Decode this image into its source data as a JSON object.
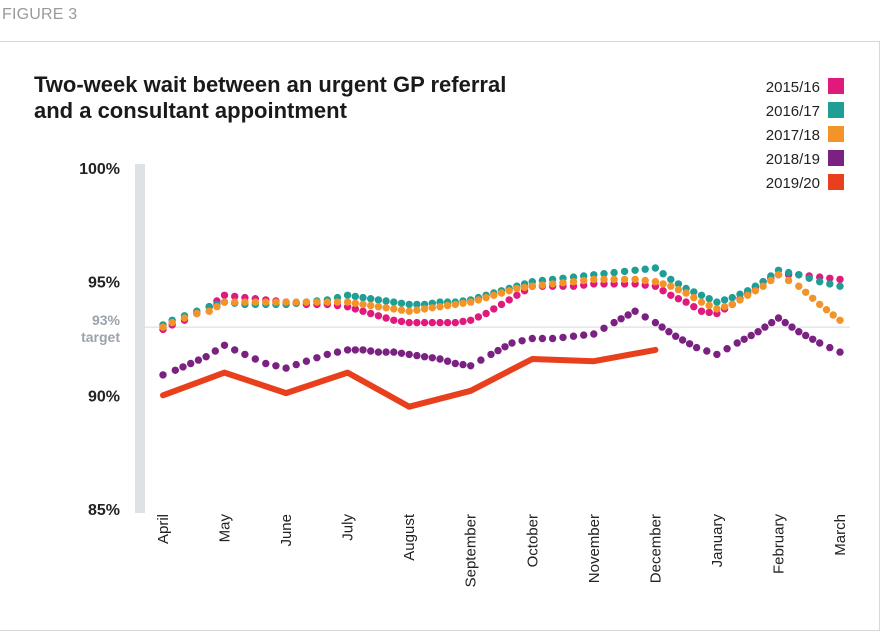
{
  "figure_label": "FIGURE 3",
  "chart_data": {
    "type": "line",
    "title_lines": [
      "Two-week wait between an urgent GP referral",
      "and a consultant appointment"
    ],
    "categories": [
      "April",
      "May",
      "June",
      "July",
      "August",
      "September",
      "October",
      "November",
      "December",
      "January",
      "February",
      "March"
    ],
    "y_ticks": [
      "100%",
      "95%",
      "90%",
      "85%"
    ],
    "ylim": [
      85,
      100
    ],
    "target": {
      "value": 93,
      "label_value": "93%",
      "label_text": "target"
    },
    "legend_position": "top-right",
    "series": [
      {
        "name": "2015/16",
        "color": "#e0197d",
        "style": "dotted",
        "x": [
          0,
          0.15,
          0.35,
          0.55,
          0.75,
          1,
          1.33,
          1.67,
          2,
          2.33,
          2.67,
          3,
          3.25,
          3.5,
          3.75,
          4,
          4.25,
          4.5,
          4.75,
          5,
          5.25,
          5.5,
          5.75,
          6,
          6.33,
          6.67,
          7,
          7.33,
          7.67,
          8,
          8.25,
          8.5,
          8.75,
          9,
          9.25,
          9.5,
          9.75,
          10,
          10.33,
          10.67,
          11
        ],
        "values": [
          92.9,
          93.1,
          93.3,
          93.6,
          93.9,
          94.4,
          94.3,
          94.2,
          94.1,
          94.0,
          94.0,
          93.9,
          93.7,
          93.5,
          93.3,
          93.2,
          93.2,
          93.2,
          93.2,
          93.3,
          93.6,
          94.0,
          94.4,
          94.8,
          94.8,
          94.8,
          94.9,
          94.9,
          94.9,
          94.8,
          94.4,
          94.1,
          93.7,
          93.6,
          94.0,
          94.5,
          95.0,
          95.3,
          95.3,
          95.2,
          95.1
        ]
      },
      {
        "name": "2016/17",
        "color": "#1e9e95",
        "style": "dotted",
        "x": [
          0,
          0.15,
          0.35,
          0.55,
          0.75,
          1,
          1.33,
          1.67,
          2,
          2.33,
          2.67,
          3,
          3.25,
          3.5,
          3.75,
          4,
          4.25,
          4.5,
          4.75,
          5,
          5.25,
          5.5,
          5.75,
          6,
          6.33,
          6.67,
          7,
          7.33,
          7.67,
          8,
          8.25,
          8.5,
          8.75,
          9,
          9.25,
          9.5,
          9.75,
          10,
          10.33,
          10.67,
          11
        ],
        "values": [
          93.1,
          93.3,
          93.5,
          93.7,
          93.9,
          94.1,
          94.0,
          94.0,
          94.0,
          94.1,
          94.2,
          94.4,
          94.3,
          94.2,
          94.1,
          94.0,
          94.0,
          94.1,
          94.1,
          94.2,
          94.4,
          94.6,
          94.8,
          95.0,
          95.1,
          95.2,
          95.3,
          95.4,
          95.5,
          95.6,
          95.1,
          94.7,
          94.4,
          94.1,
          94.3,
          94.6,
          95.0,
          95.5,
          95.3,
          95.0,
          94.8
        ]
      },
      {
        "name": "2017/18",
        "color": "#f39428",
        "style": "dotted",
        "x": [
          0,
          0.15,
          0.35,
          0.55,
          0.75,
          1,
          1.33,
          1.67,
          2,
          2.33,
          2.67,
          3,
          3.25,
          3.5,
          3.75,
          4,
          4.25,
          4.5,
          4.75,
          5,
          5.25,
          5.5,
          5.75,
          6,
          6.33,
          6.67,
          7,
          7.33,
          7.67,
          8,
          8.25,
          8.5,
          8.75,
          9,
          9.25,
          9.5,
          9.75,
          10,
          10.33,
          10.67,
          11
        ],
        "values": [
          93.0,
          93.2,
          93.4,
          93.6,
          93.7,
          94.1,
          94.1,
          94.1,
          94.1,
          94.1,
          94.1,
          94.1,
          94.0,
          93.9,
          93.8,
          93.7,
          93.8,
          93.9,
          94.0,
          94.1,
          94.3,
          94.5,
          94.7,
          94.8,
          94.9,
          95.0,
          95.1,
          95.1,
          95.1,
          95.0,
          94.8,
          94.5,
          94.1,
          93.8,
          94.0,
          94.4,
          94.8,
          95.3,
          94.8,
          94.0,
          93.3
        ]
      },
      {
        "name": "2018/19",
        "color": "#7b2181",
        "style": "dotted",
        "x": [
          0,
          0.2,
          0.45,
          0.7,
          1,
          1.33,
          1.67,
          2,
          2.33,
          2.67,
          3,
          3.25,
          3.5,
          3.75,
          4,
          4.25,
          4.5,
          4.75,
          5,
          5.33,
          5.67,
          6,
          6.33,
          6.67,
          7,
          7.33,
          7.67,
          8,
          8.33,
          8.67,
          9,
          9.33,
          9.67,
          10,
          10.33,
          10.67,
          11
        ],
        "values": [
          90.9,
          91.1,
          91.4,
          91.7,
          92.2,
          91.8,
          91.4,
          91.2,
          91.5,
          91.8,
          92.0,
          92.0,
          91.9,
          91.9,
          91.8,
          91.7,
          91.6,
          91.4,
          91.3,
          91.8,
          92.3,
          92.5,
          92.5,
          92.6,
          92.7,
          93.2,
          93.7,
          93.2,
          92.6,
          92.1,
          91.8,
          92.3,
          92.8,
          93.4,
          92.8,
          92.3,
          91.9
        ]
      },
      {
        "name": "2019/20",
        "color": "#e8401c",
        "style": "solid",
        "x": [
          0,
          1,
          2,
          3,
          4,
          5,
          6,
          7,
          8
        ],
        "values": [
          90.0,
          91.0,
          90.1,
          91.0,
          89.5,
          90.2,
          91.6,
          91.5,
          92.0
        ]
      }
    ]
  }
}
